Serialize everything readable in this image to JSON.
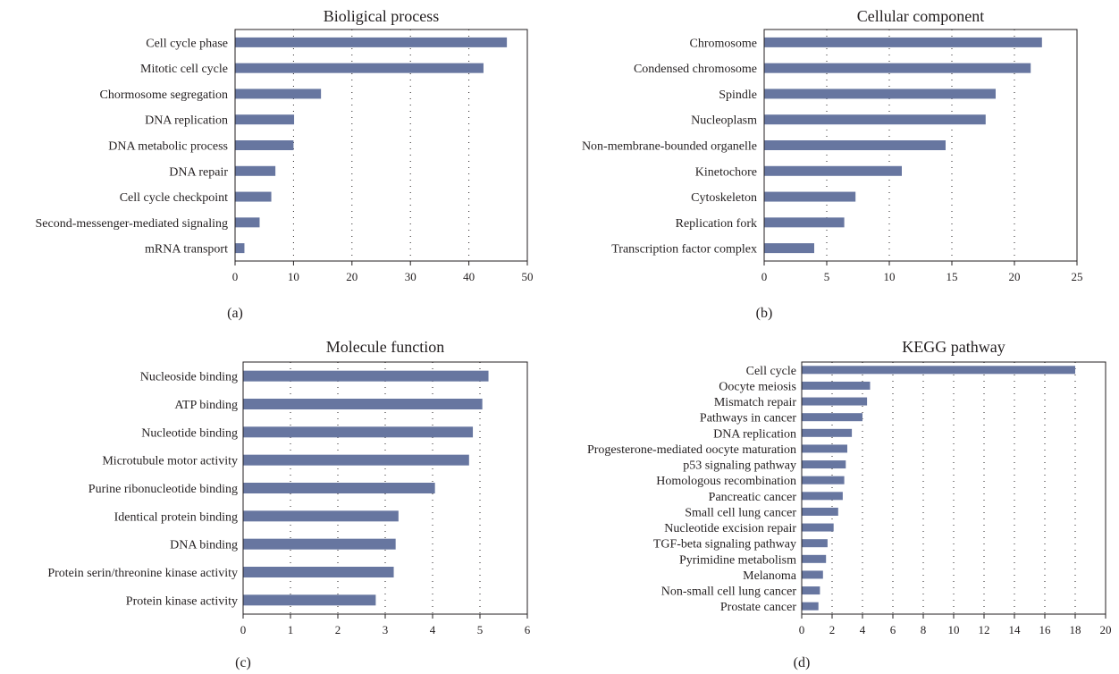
{
  "figure": {
    "bar_color": "#6776a0",
    "text_color": "#231f20"
  },
  "chart_data": [
    {
      "type": "bar",
      "orientation": "horizontal",
      "panel_label": "(a)",
      "title": "Bioligical process",
      "categories": [
        "Cell cycle phase",
        "Mitotic cell cycle",
        "Chormosome segregation",
        "DNA replication",
        "DNA metabolic process",
        "DNA repair",
        "Cell cycle checkpoint",
        "Second-messenger-mediated signaling",
        "mRNA transport"
      ],
      "values": [
        46.5,
        42.5,
        14.7,
        10.1,
        10.0,
        6.9,
        6.2,
        4.2,
        1.6
      ],
      "xlim": [
        0,
        50
      ],
      "xticks": [
        "0",
        "10",
        "20",
        "30",
        "40",
        "50"
      ],
      "grid": "vertical dotted"
    },
    {
      "type": "bar",
      "orientation": "horizontal",
      "panel_label": "(b)",
      "title": "Cellular component",
      "categories": [
        "Chromosome",
        "Condensed chromosome",
        "Spindle",
        "Nucleoplasm",
        "Non-membrane-bounded organelle",
        "Kinetochore",
        "Cytoskeleton",
        "Replication fork",
        "Transcription factor complex"
      ],
      "values": [
        22.2,
        21.3,
        18.5,
        17.7,
        14.5,
        11.0,
        7.3,
        6.4,
        4.0
      ],
      "xlim": [
        0,
        25
      ],
      "xticks": [
        "0",
        "5",
        "10",
        "15",
        "20",
        "25"
      ],
      "grid": "vertical dotted"
    },
    {
      "type": "bar",
      "orientation": "horizontal",
      "panel_label": "(c)",
      "title": "Molecule function",
      "categories": [
        "Nucleoside binding",
        "ATP binding",
        "Nucleotide binding",
        "Microtubule motor activity",
        "Purine ribonucleotide binding",
        "Identical protein binding",
        "DNA binding",
        "Protein serin/threonine kinase activity",
        "Protein kinase activity"
      ],
      "values": [
        5.18,
        5.05,
        4.85,
        4.77,
        4.05,
        3.28,
        3.22,
        3.18,
        2.8
      ],
      "xlim": [
        0,
        6
      ],
      "xticks": [
        "0",
        "1",
        "2",
        "3",
        "4",
        "5",
        "6"
      ],
      "grid": "vertical dotted"
    },
    {
      "type": "bar",
      "orientation": "horizontal",
      "panel_label": "(d)",
      "title": "KEGG pathway",
      "categories": [
        "Cell cycle",
        "Oocyte meiosis",
        "Mismatch repair",
        "Pathways in cancer",
        "DNA replication",
        "Progesterone-mediated oocyte maturation",
        "p53 signaling pathway",
        "Homologous recombination",
        "Pancreatic cancer",
        "Small cell lung cancer",
        "Nucleotide excision repair",
        "TGF-beta signaling pathway",
        "Pyrimidine metabolism",
        "Melanoma",
        "Non-small cell lung cancer",
        "Prostate cancer"
      ],
      "values": [
        18.0,
        4.5,
        4.3,
        4.0,
        3.3,
        3.0,
        2.9,
        2.8,
        2.7,
        2.4,
        2.1,
        1.7,
        1.6,
        1.4,
        1.2,
        1.1
      ],
      "xlim": [
        0,
        20
      ],
      "xticks": [
        "0",
        "2",
        "4",
        "6",
        "8",
        "10",
        "12",
        "14",
        "16",
        "18",
        "20"
      ],
      "grid": "vertical dotted"
    }
  ]
}
